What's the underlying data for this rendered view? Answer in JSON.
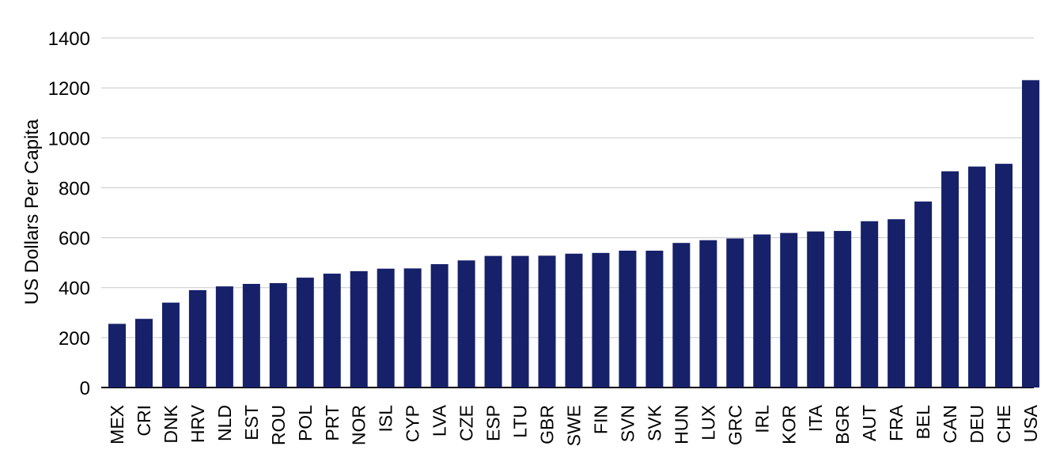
{
  "chart_data": {
    "type": "bar",
    "title": "",
    "xlabel": "",
    "ylabel": "US Dollars Per Capita",
    "ylim": [
      0,
      1400
    ],
    "yticks": [
      0,
      200,
      400,
      600,
      800,
      1000,
      1200,
      1400
    ],
    "grid": true,
    "bar_color": "#16216a",
    "grid_color": "#c8c8c8",
    "categories": [
      "MEX",
      "CRI",
      "DNK",
      "HRV",
      "NLD",
      "EST",
      "ROU",
      "POL",
      "PRT",
      "NOR",
      "ISL",
      "CYP",
      "LVA",
      "CZE",
      "ESP",
      "LTU",
      "GBR",
      "SWE",
      "FIN",
      "SVN",
      "SVK",
      "HUN",
      "LUX",
      "GRC",
      "IRL",
      "KOR",
      "ITA",
      "BGR",
      "AUT",
      "FRA",
      "BEL",
      "CAN",
      "DEU",
      "CHE",
      "USA"
    ],
    "values": [
      255,
      275,
      340,
      390,
      405,
      415,
      418,
      440,
      456,
      466,
      476,
      477,
      494,
      509,
      527,
      527,
      528,
      536,
      539,
      548,
      548,
      579,
      590,
      597,
      613,
      619,
      625,
      627,
      666,
      674,
      745,
      866,
      885,
      896,
      1231
    ]
  }
}
